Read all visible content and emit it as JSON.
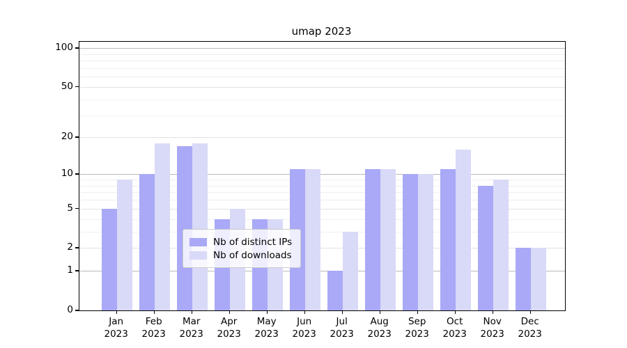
{
  "chart_data": {
    "type": "bar",
    "title": "umap 2023",
    "categories": [
      "Jan",
      "Feb",
      "Mar",
      "Apr",
      "May",
      "Jun",
      "Jul",
      "Aug",
      "Sep",
      "Oct",
      "Nov",
      "Dec"
    ],
    "category_year": "2023",
    "series": [
      {
        "name": "Nb of distinct IPs",
        "color": "#a9a9f7",
        "values": [
          5,
          10,
          17,
          4,
          4,
          11,
          1,
          11,
          10,
          11,
          8,
          2
        ]
      },
      {
        "name": "Nb of downloads",
        "color": "#d9d9f8",
        "values": [
          9,
          18,
          18,
          5,
          4,
          11,
          3,
          11,
          10,
          16,
          9,
          2
        ]
      }
    ],
    "xlabel": "",
    "ylabel": "",
    "yscale": "symlog (position proportional to log10(1+value))",
    "ylim": [
      0,
      112
    ],
    "y_major_ticks": [
      0,
      1,
      2,
      5,
      10,
      20,
      50,
      100
    ],
    "y_minor_gridlines": [
      3,
      4,
      6,
      7,
      8,
      9,
      30,
      40,
      60,
      70,
      80,
      90
    ],
    "grid": "on",
    "legend_position": "lower center",
    "colors": {
      "background": "#ffffff",
      "frame": "#000000",
      "text": "#000000",
      "grid_major_pow10": "#b9b9b9",
      "grid_major": "#e2e2e2",
      "grid_minor": "#efefef"
    }
  }
}
